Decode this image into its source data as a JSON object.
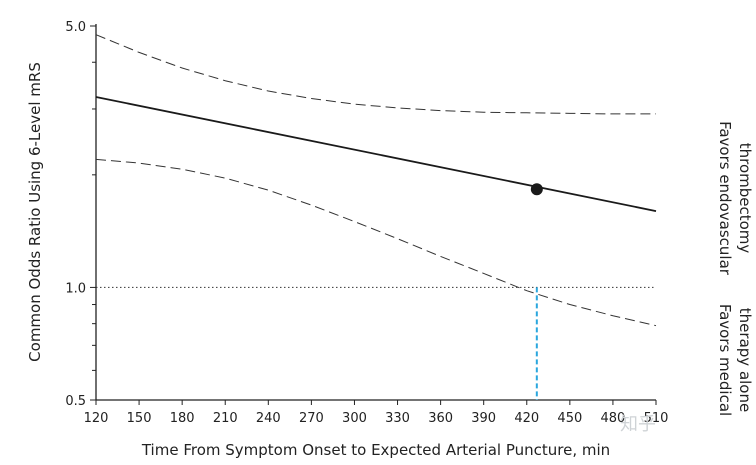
{
  "chart_data": {
    "type": "line",
    "xlabel": "Time From Symptom Onset to Expected Arterial Puncture, min",
    "ylabel": "Common Odds Ratio Using 6-Level mRS",
    "xlim": [
      120,
      510
    ],
    "ylim": [
      0.5,
      5.0
    ],
    "y_scale": "log",
    "x_ticks": [
      120,
      150,
      180,
      210,
      240,
      270,
      300,
      330,
      360,
      390,
      420,
      450,
      480,
      510
    ],
    "y_ticks": [
      0.5,
      1.0,
      5.0
    ],
    "y_tick_labels": [
      "0.5",
      "1.0",
      "5.0"
    ],
    "y_minor_ticks": [
      0.6,
      0.7,
      0.8,
      0.9,
      2,
      3,
      4
    ],
    "reference_line": 1.0,
    "series": [
      {
        "role": "estimate",
        "x": [
          120,
          510
        ],
        "y": [
          3.23,
          1.6
        ]
      },
      {
        "role": "upper_ci",
        "x": [
          120,
          150,
          180,
          210,
          240,
          270,
          300,
          330,
          360,
          390,
          420,
          450,
          480,
          510
        ],
        "y": [
          4.74,
          4.25,
          3.86,
          3.57,
          3.35,
          3.2,
          3.09,
          3.02,
          2.97,
          2.94,
          2.93,
          2.92,
          2.91,
          2.91
        ]
      },
      {
        "role": "lower_ci",
        "x": [
          120,
          150,
          180,
          210,
          240,
          270,
          300,
          330,
          360,
          390,
          420,
          450,
          480,
          510
        ],
        "y": [
          2.2,
          2.15,
          2.07,
          1.96,
          1.82,
          1.66,
          1.5,
          1.35,
          1.21,
          1.09,
          0.98,
          0.9,
          0.84,
          0.79
        ]
      }
    ],
    "marker": {
      "x": 427,
      "y": 1.83
    },
    "threshold": {
      "x": 427,
      "y": 1.0
    },
    "side_labels": {
      "top": [
        "Favors endovascular",
        "thrombectomy"
      ],
      "bottom": [
        "Favors medical",
        "therapy alone"
      ]
    },
    "grid": false,
    "legend": "none",
    "colors": {
      "estimate": "#1a1a1a",
      "ci": "#333333",
      "reference": "#333333",
      "threshold": "#2aa7de",
      "marker": "#1a1a1a"
    }
  },
  "watermark": "知乎"
}
